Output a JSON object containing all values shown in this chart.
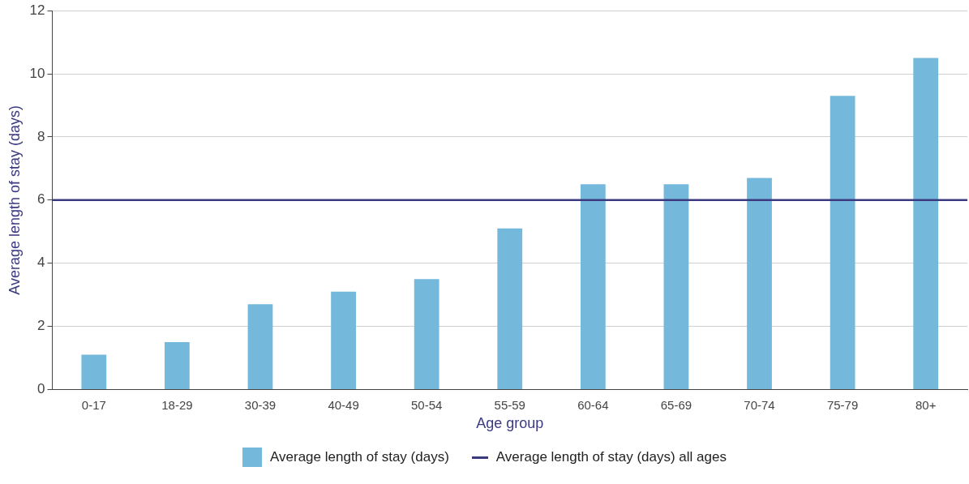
{
  "chart_data": {
    "type": "bar",
    "xlabel": "Age group",
    "ylabel": "Average length of stay (days)",
    "categories": [
      "0-17",
      "18-29",
      "30-39",
      "40-49",
      "50-54",
      "55-59",
      "60-64",
      "65-69",
      "70-74",
      "75-79",
      "80+"
    ],
    "series": [
      {
        "name": "Average length of stay (days)",
        "color": "#74b9db",
        "values": [
          1.1,
          1.5,
          2.7,
          3.1,
          3.5,
          5.1,
          6.5,
          6.5,
          6.7,
          9.3,
          10.5
        ]
      }
    ],
    "ylim": [
      0,
      12
    ],
    "yticks": [
      0,
      2,
      4,
      6,
      8,
      10,
      12
    ],
    "grid": "y",
    "legend": "bottom",
    "ref_lines": [
      {
        "axis": "y",
        "value": 6,
        "label": "Average length of stay (days) all ages",
        "color": "#3b3a80"
      }
    ]
  }
}
